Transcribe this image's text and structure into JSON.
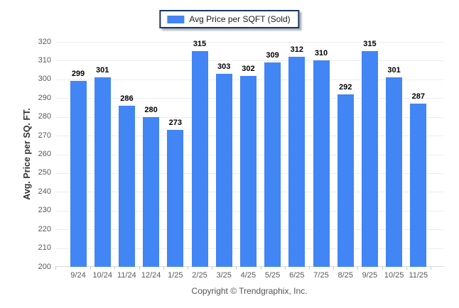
{
  "legend": {
    "label": "Avg Price per SQFT (Sold)",
    "swatch_color": "#4285f4"
  },
  "footer": {
    "copyright": "Copyright © Trendgraphix, Inc."
  },
  "colors": {
    "bar": "#4285f4",
    "legend_border": "#17375e",
    "gridline": "#ededed",
    "axis_line": "#d9d9d9",
    "axis_text": "#595959",
    "value_text": "#000000"
  },
  "chart_data": {
    "type": "bar",
    "title": "Avg Price per SQFT (Sold)",
    "categories": [
      "9/24",
      "10/24",
      "11/24",
      "12/24",
      "1/25",
      "2/25",
      "3/25",
      "4/25",
      "5/25",
      "6/25",
      "7/25",
      "8/25",
      "9/25",
      "10/25",
      "11/25"
    ],
    "values": [
      299,
      301,
      286,
      280,
      273,
      315,
      303,
      302,
      309,
      312,
      310,
      292,
      315,
      301,
      287
    ],
    "xlabel": "",
    "ylabel": "Avg. Price per SQ. FT.",
    "ylim": [
      200,
      320
    ],
    "ytick_step": 10,
    "grid": true,
    "legend_position": "top",
    "bar_color": "#4285f4"
  }
}
